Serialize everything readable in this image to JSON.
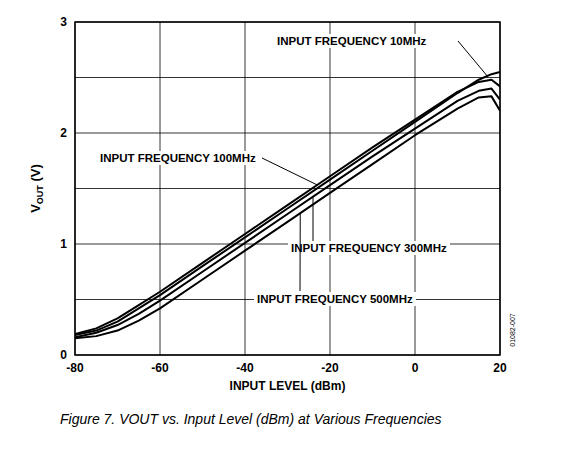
{
  "chart_data": {
    "type": "line",
    "title": "Figure 7. VOUT vs. Input Level (dBm) at Various Frequencies",
    "xlabel": "INPUT LEVEL (dBm)",
    "ylabel": "VOUT (V)",
    "annotations": [
      "01082-007"
    ],
    "x": [
      -80,
      -75,
      -70,
      -65,
      -60,
      -50,
      -40,
      -30,
      -20,
      -10,
      0,
      10,
      15,
      18,
      20
    ],
    "series": [
      {
        "name": "INPUT FREQUENCY 10MHz",
        "color": "#000000",
        "values": [
          0.18,
          0.22,
          0.3,
          0.42,
          0.54,
          0.8,
          1.06,
          1.32,
          1.58,
          1.84,
          2.1,
          2.36,
          2.48,
          2.53,
          2.55
        ]
      },
      {
        "name": "INPUT FREQUENCY 100MHz",
        "color": "#000000",
        "values": [
          0.19,
          0.24,
          0.33,
          0.45,
          0.57,
          0.83,
          1.09,
          1.35,
          1.61,
          1.87,
          2.12,
          2.37,
          2.46,
          2.48,
          2.42
        ]
      },
      {
        "name": "INPUT FREQUENCY 300MHz",
        "color": "#000000",
        "values": [
          0.16,
          0.2,
          0.27,
          0.37,
          0.49,
          0.75,
          1.01,
          1.27,
          1.53,
          1.79,
          2.04,
          2.29,
          2.38,
          2.4,
          2.3
        ]
      },
      {
        "name": "INPUT FREQUENCY 500MHz",
        "color": "#000000",
        "values": [
          0.15,
          0.17,
          0.22,
          0.31,
          0.42,
          0.68,
          0.94,
          1.2,
          1.46,
          1.72,
          1.98,
          2.22,
          2.32,
          2.33,
          2.2
        ]
      }
    ],
    "xlim": [
      -80,
      20
    ],
    "ylim": [
      0,
      3
    ],
    "xticks": [
      -80,
      -60,
      -40,
      -20,
      0,
      20
    ],
    "yticks": [
      0,
      1,
      2,
      3
    ],
    "grid": true
  }
}
